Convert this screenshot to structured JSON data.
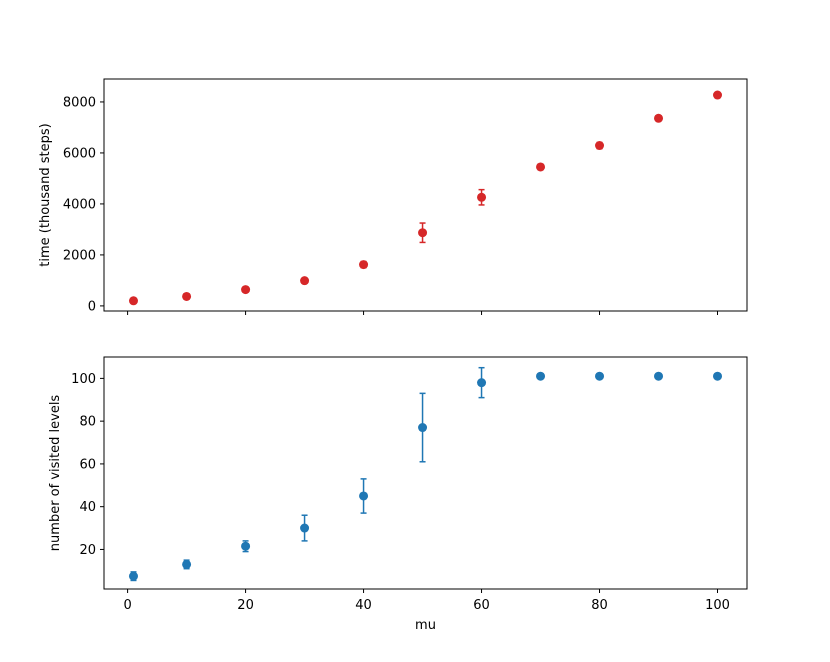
{
  "chart_data": [
    {
      "type": "scatter",
      "title": "",
      "xlabel": "",
      "ylabel": "time (thousand steps)",
      "color": "#d62728",
      "xlim": [
        -4,
        105
      ],
      "ylim": [
        -200,
        8900
      ],
      "xticks": [
        0,
        20,
        40,
        60,
        80,
        100
      ],
      "show_xtick_labels": false,
      "yticks": [
        0,
        2000,
        4000,
        6000,
        8000
      ],
      "ytick_labels": [
        "0",
        "2000",
        "4000",
        "6000",
        "8000"
      ],
      "grid": false,
      "x": [
        1,
        10,
        20,
        30,
        40,
        50,
        60,
        70,
        80,
        90,
        100
      ],
      "y": [
        200,
        370,
        640,
        990,
        1620,
        2870,
        4260,
        5450,
        6290,
        7360,
        8270
      ],
      "yerr": [
        40,
        50,
        60,
        80,
        120,
        380,
        300,
        100,
        120,
        70,
        70
      ]
    },
    {
      "type": "scatter",
      "title": "",
      "xlabel": "mu",
      "ylabel": "number of visited levels",
      "color": "#1f77b4",
      "xlim": [
        -4,
        105
      ],
      "ylim": [
        1.5,
        110
      ],
      "xticks": [
        0,
        20,
        40,
        60,
        80,
        100
      ],
      "xtick_labels": [
        "0",
        "20",
        "40",
        "60",
        "80",
        "100"
      ],
      "show_xtick_labels": true,
      "yticks": [
        20,
        40,
        60,
        80,
        100
      ],
      "ytick_labels": [
        "20",
        "40",
        "60",
        "80",
        "100"
      ],
      "grid": false,
      "x": [
        1,
        10,
        20,
        30,
        40,
        50,
        60,
        70,
        80,
        90,
        100
      ],
      "y": [
        7.5,
        13,
        21.5,
        30,
        45,
        77,
        98,
        101,
        101,
        101,
        101
      ],
      "yerr": [
        2,
        2,
        2.5,
        6,
        8,
        16,
        7,
        0,
        0,
        0,
        0
      ]
    }
  ]
}
